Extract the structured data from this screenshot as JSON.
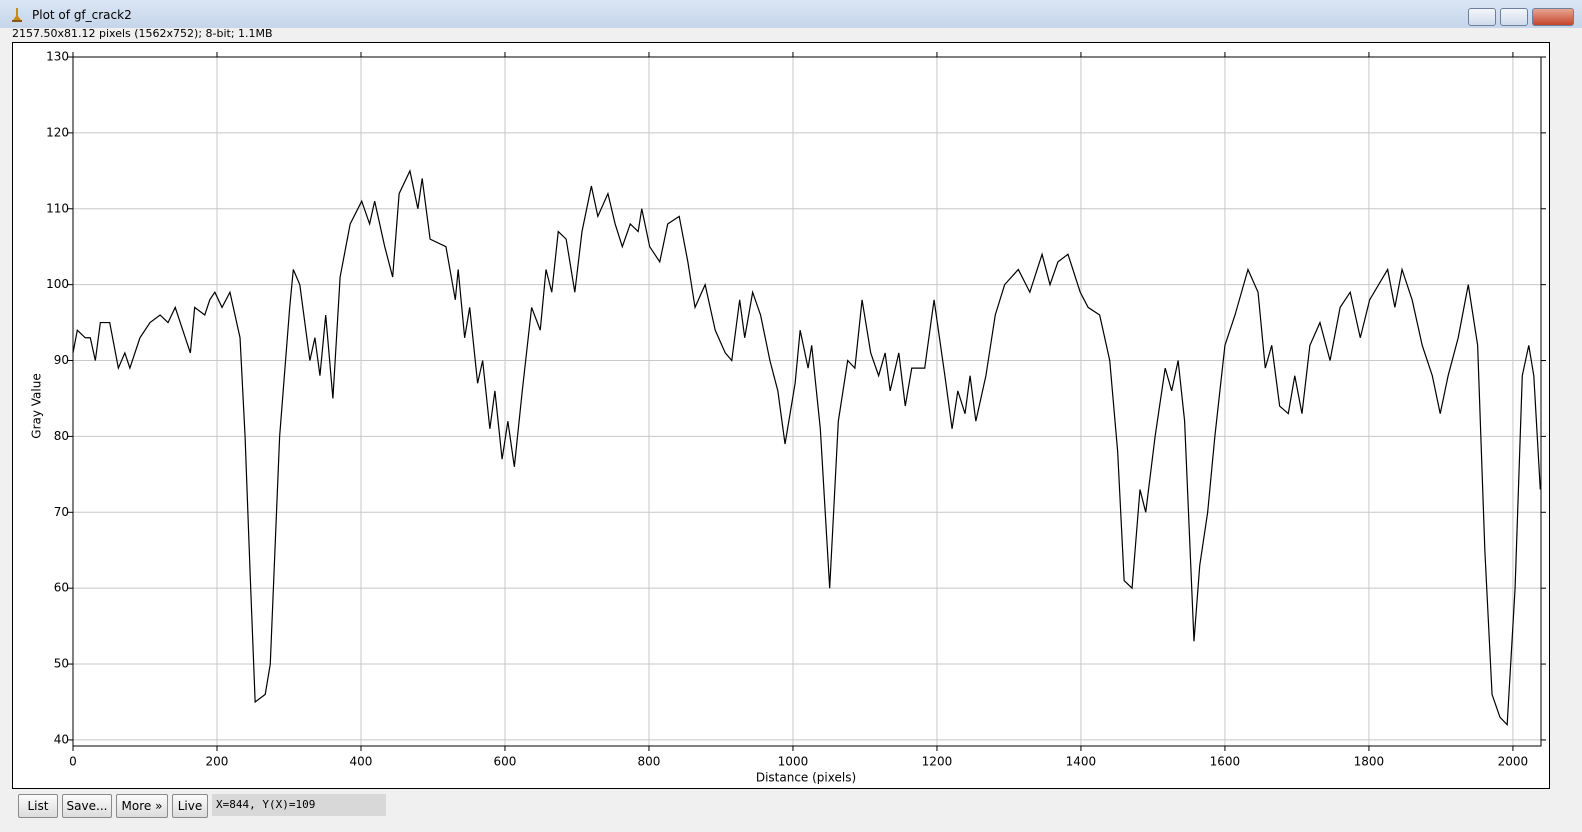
{
  "window": {
    "title": "Plot of gf_crack2"
  },
  "info": "2157.50x81.12 pixels (1562x752); 8-bit; 1.1MB",
  "chart_data": {
    "type": "line",
    "xlabel": "Distance (pixels)",
    "ylabel": "Gray Value",
    "x": [
      0,
      6,
      17,
      24,
      31,
      38,
      51,
      63,
      72,
      79,
      93,
      107,
      121,
      132,
      142,
      156,
      163,
      169,
      183,
      190,
      197,
      207,
      218,
      232,
      239,
      246,
      253,
      267,
      274,
      287,
      301,
      306,
      315,
      329,
      336,
      343,
      351,
      361,
      371,
      385,
      401,
      412,
      419,
      433,
      444,
      453,
      468,
      479,
      485,
      496,
      518,
      531,
      535,
      544,
      551,
      562,
      569,
      579,
      586,
      596,
      604,
      613,
      624,
      637,
      649,
      657,
      665,
      674,
      685,
      697,
      707,
      720,
      729,
      743,
      753,
      763,
      774,
      785,
      790,
      801,
      815,
      826,
      842,
      854,
      864,
      878,
      892,
      906,
      915,
      926,
      933,
      944,
      955,
      968,
      979,
      989,
      1003,
      1010,
      1021,
      1026,
      1038,
      1051,
      1063,
      1076,
      1086,
      1096,
      1108,
      1119,
      1128,
      1135,
      1147,
      1156,
      1165,
      1183,
      1196,
      1211,
      1221,
      1229,
      1239,
      1246,
      1254,
      1268,
      1281,
      1294,
      1313,
      1329,
      1346,
      1357,
      1368,
      1382,
      1399,
      1410,
      1426,
      1440,
      1451,
      1460,
      1471,
      1482,
      1490,
      1503,
      1517,
      1526,
      1535,
      1544,
      1557,
      1565,
      1576,
      1586,
      1600,
      1614,
      1632,
      1646,
      1656,
      1665,
      1676,
      1688,
      1697,
      1707,
      1718,
      1732,
      1746,
      1760,
      1774,
      1788,
      1801,
      1826,
      1836,
      1846,
      1860,
      1874,
      1888,
      1899,
      1910,
      1924,
      1938,
      1951,
      1961,
      1971,
      1982,
      1992,
      2003,
      2013,
      2022,
      2029,
      2038
    ],
    "series": [
      {
        "color": "#000000",
        "values": [
          91,
          94,
          93,
          93,
          90,
          95,
          95,
          89,
          91,
          89,
          93,
          95,
          96,
          95,
          97,
          93,
          91,
          97,
          96,
          98,
          99,
          97,
          99,
          93,
          80,
          62,
          45,
          46,
          50,
          80,
          97,
          102,
          100,
          90,
          93,
          88,
          96,
          85,
          101,
          108,
          111,
          108,
          111,
          105,
          101,
          112,
          115,
          110,
          114,
          106,
          105,
          98,
          102,
          93,
          97,
          87,
          90,
          81,
          86,
          77,
          82,
          76,
          86,
          97,
          94,
          102,
          99,
          107,
          106,
          99,
          107,
          113,
          109,
          112,
          108,
          105,
          108,
          107,
          110,
          105,
          103,
          108,
          109,
          103,
          97,
          100,
          94,
          91,
          90,
          98,
          93,
          99,
          96,
          90,
          86,
          79,
          87,
          94,
          89,
          92,
          81,
          60,
          82,
          90,
          89,
          98,
          91,
          88,
          91,
          86,
          91,
          84,
          89,
          89,
          98,
          88,
          81,
          86,
          83,
          88,
          82,
          88,
          96,
          100,
          102,
          99,
          104,
          100,
          103,
          104,
          99,
          97,
          96,
          90,
          78,
          61,
          60,
          73,
          70,
          80,
          89,
          86,
          90,
          82,
          53,
          63,
          70,
          80,
          92,
          96,
          102,
          99,
          89,
          92,
          84,
          83,
          88,
          83,
          92,
          95,
          90,
          97,
          99,
          93,
          98,
          102,
          97,
          102,
          98,
          92,
          88,
          83,
          88,
          93,
          100,
          92,
          65,
          46,
          43,
          42,
          60,
          88,
          92,
          88,
          73
        ]
      }
    ],
    "xlim": [
      0,
      2039
    ],
    "ylim": [
      39.2,
      130
    ],
    "xticks": [
      0,
      200,
      400,
      600,
      800,
      1000,
      1200,
      1400,
      1600,
      1800,
      2000
    ],
    "yticks": [
      40,
      50,
      60,
      70,
      80,
      90,
      100,
      110,
      120,
      130
    ],
    "grid": true
  },
  "buttons": [
    "List",
    "Save...",
    "More »",
    "Live"
  ],
  "status": "X=844, Y(X)=109"
}
